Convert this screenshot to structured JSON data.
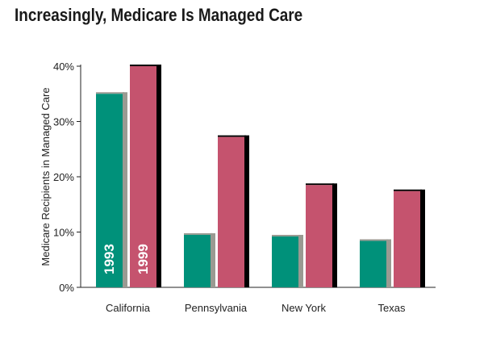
{
  "chart_data": {
    "type": "bar",
    "title": "Increasingly, Medicare Is Managed Care",
    "xlabel": "",
    "ylabel": "Medicare Recipients in Managed Care",
    "categories": [
      "California",
      "Pennsylvania",
      "New York",
      "Texas"
    ],
    "series": [
      {
        "name": "1993",
        "color": "#00917a",
        "values": [
          35,
          9.5,
          9.2,
          8.4
        ]
      },
      {
        "name": "1999",
        "color": "#c5536e",
        "values": [
          40,
          27.2,
          18.5,
          17.4
        ]
      }
    ],
    "ylim": [
      0,
      40
    ],
    "yticks": [
      "0%",
      "10%",
      "20%",
      "30%",
      "40%"
    ],
    "grid": false,
    "legend": "in-bar"
  }
}
